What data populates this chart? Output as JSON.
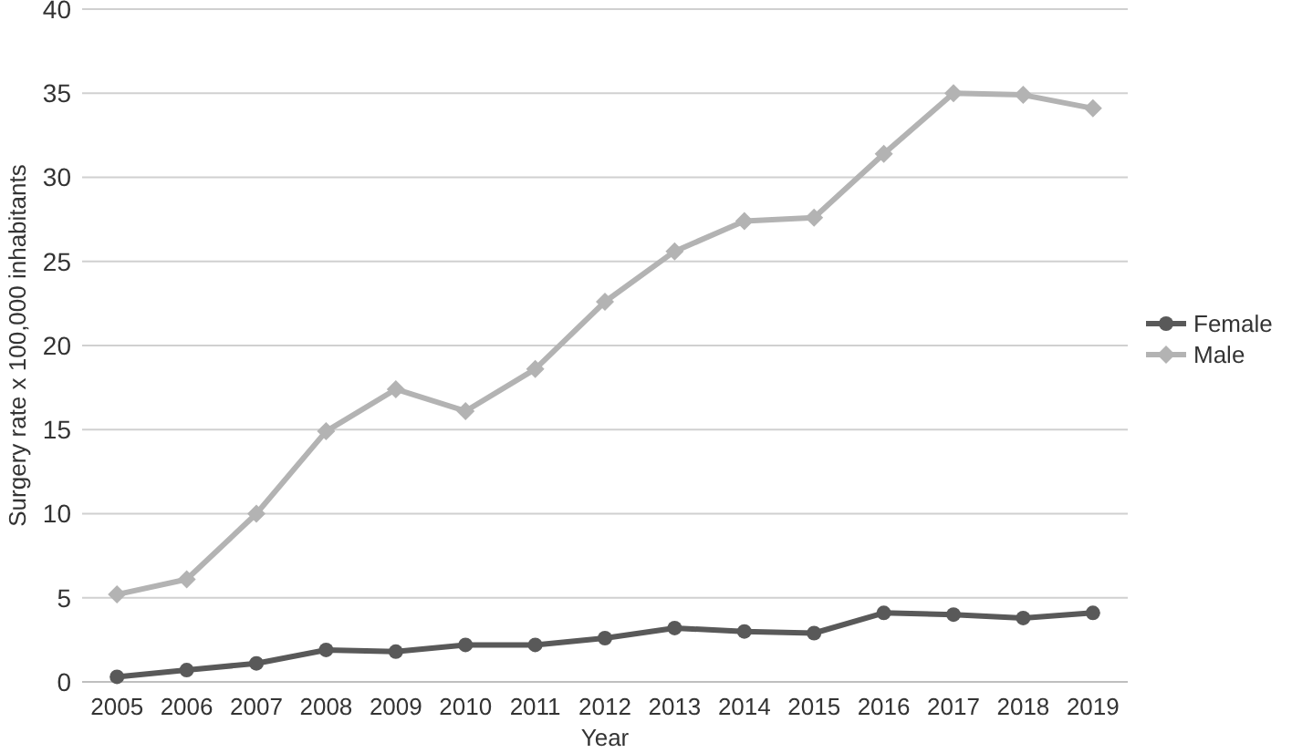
{
  "chart_data": {
    "type": "line",
    "xlabel": "Year",
    "ylabel": "Surgery rate x 100,000 inhabitants",
    "categories": [
      "2005",
      "2006",
      "2007",
      "2008",
      "2009",
      "2010",
      "2011",
      "2012",
      "2013",
      "2014",
      "2015",
      "2016",
      "2017",
      "2018",
      "2019"
    ],
    "series": [
      {
        "name": "Female",
        "color": "#595959",
        "marker": "circle",
        "values": [
          0.3,
          0.7,
          1.1,
          1.9,
          1.8,
          2.2,
          2.2,
          2.6,
          3.2,
          3.0,
          2.9,
          4.1,
          4.0,
          3.8,
          4.1
        ]
      },
      {
        "name": "Male",
        "color": "#b3b3b3",
        "marker": "diamond",
        "values": [
          5.2,
          6.1,
          10.0,
          14.9,
          17.4,
          16.1,
          18.6,
          22.6,
          25.6,
          27.4,
          27.6,
          31.4,
          35.0,
          34.9,
          34.1
        ]
      }
    ],
    "ylim": [
      0,
      40
    ],
    "yticks": [
      0,
      5,
      10,
      15,
      20,
      25,
      30,
      35,
      40
    ],
    "grid": "y",
    "legend": "right",
    "line_style": "solid"
  }
}
